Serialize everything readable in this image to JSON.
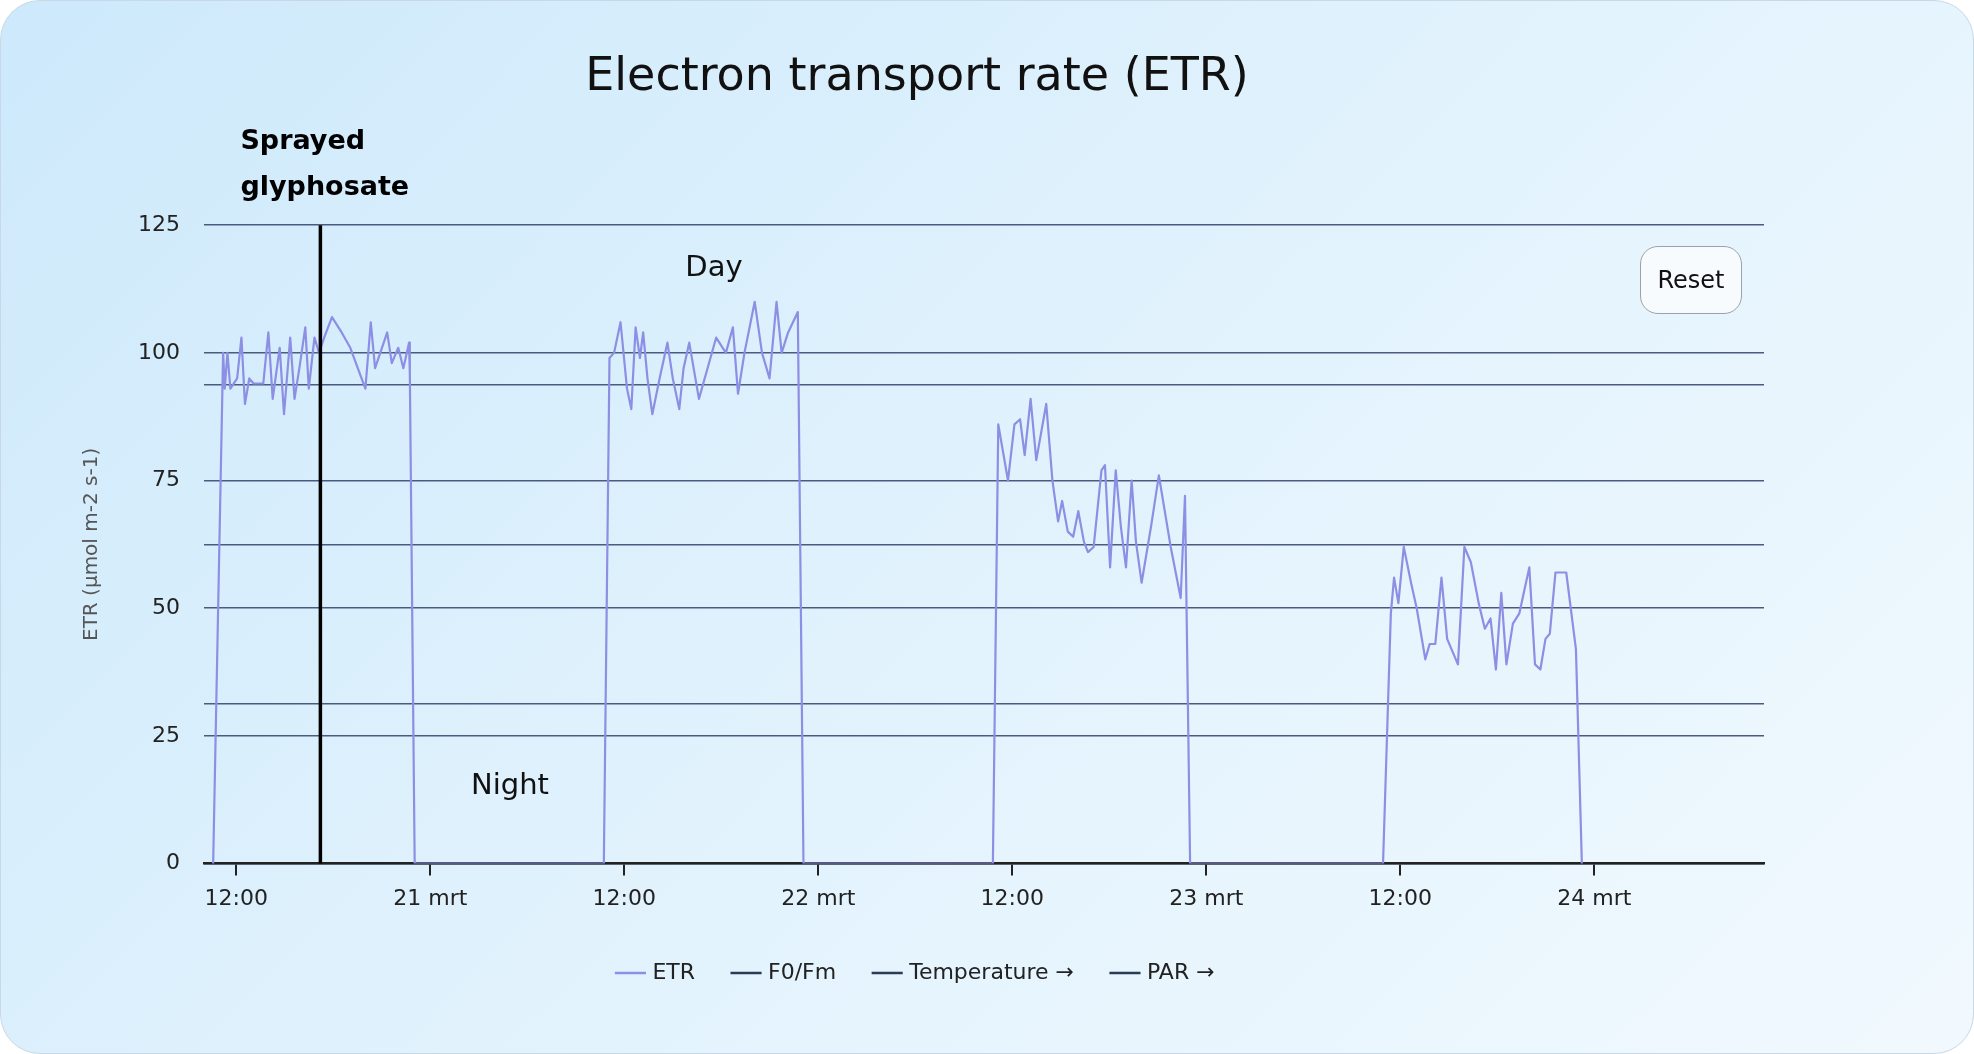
{
  "chart_data": {
    "type": "line",
    "title": "Electron transport rate (ETR)",
    "ylabel": "ETR (µmol m-2 s-1)",
    "xlim": [
      "--03-20T10:00",
      "--03-24T10:30"
    ],
    "xticks": [
      {
        "value": "--03-20T12:00",
        "label": "12:00"
      },
      {
        "value": "--03-21",
        "label": "21 mrt"
      },
      {
        "value": "--03-21T12:00",
        "label": "12:00"
      },
      {
        "value": "--03-22",
        "label": "22 mrt"
      },
      {
        "value": "--03-22T12:00",
        "label": "12:00"
      },
      {
        "value": "--03-23",
        "label": "23 mrt"
      },
      {
        "value": "--03-23T12:00",
        "label": "12:00"
      },
      {
        "value": "--03-24",
        "label": "24 mrt"
      }
    ],
    "ylim": [
      0,
      125
    ],
    "yticks": [
      0,
      25,
      {
        "value": 31.25,
        "label": null
      },
      50,
      {
        "value": 62.5,
        "label": null
      },
      75,
      {
        "value": 93.75,
        "label": null
      },
      100,
      125
    ],
    "grid": "y",
    "legend": "bottom",
    "marker": "none",
    "line_style": "solid",
    "series": [
      {
        "name": "ETR",
        "color": "#8c8fe3",
        "x": [
          "--03-20T10:34",
          "--03-20T11:11",
          "--03-20T11:17",
          "--03-20T11:27",
          "--03-20T11:38",
          "--03-20T12:03",
          "--03-20T12:19",
          "--03-20T12:32",
          "--03-20T12:48",
          "--03-20T13:04",
          "--03-20T13:23",
          "--03-20T13:40",
          "--03-20T13:59",
          "--03-20T14:15",
          "--03-20T14:41",
          "--03-20T14:57",
          "--03-20T15:20",
          "--03-20T15:36",
          "--03-20T15:54",
          "--03-20T16:16",
          "--03-20T16:29",
          "--03-20T16:50",
          "--03-20T17:07",
          "--03-20T17:26",
          "--03-20T17:55",
          "--03-20T18:31",
          "--03-20T19:03",
          "--03-20T19:59",
          "--03-20T20:19",
          "--03-20T20:35",
          "--03-20T21:20",
          "--03-20T21:37",
          "--03-20T22:01",
          "--03-20T22:20",
          "--03-20T22:41",
          "--03-20T22:44",
          "--03-20T23:02",
          "--03-21T10:44",
          "--03-21T11:05",
          "--03-21T11:22",
          "--03-21T11:46",
          "--03-21T12:10",
          "--03-21T12:26",
          "--03-21T12:42",
          "--03-21T12:58",
          "--03-21T13:10",
          "--03-21T13:26",
          "--03-21T13:44",
          "--03-21T14:11",
          "--03-21T14:40",
          "--03-21T15:00",
          "--03-21T15:24",
          "--03-21T15:40",
          "--03-21T16:01",
          "--03-21T16:37",
          "--03-21T17:09",
          "--03-21T17:41",
          "--03-21T18:17",
          "--03-21T18:43",
          "--03-21T19:02",
          "--03-21T19:26",
          "--03-21T20:04",
          "--03-21T20:31",
          "--03-21T20:59",
          "--03-21T21:25",
          "--03-21T21:44",
          "--03-21T22:08",
          "--03-21T22:44",
          "--03-21T23:05",
          "--03-22T10:48",
          "--03-22T11:08",
          "--03-22T11:44",
          "--03-22T12:08",
          "--03-22T12:29",
          "--03-22T12:46",
          "--03-22T13:08",
          "--03-22T13:29",
          "--03-22T14:06",
          "--03-22T14:29",
          "--03-22T14:50",
          "--03-22T15:05",
          "--03-22T15:26",
          "--03-22T15:46",
          "--03-22T16:05",
          "--03-22T16:26",
          "--03-22T16:41",
          "--03-22T17:02",
          "--03-22T17:31",
          "--03-22T17:44",
          "--03-22T18:03",
          "--03-22T18:24",
          "--03-22T18:43",
          "--03-22T19:02",
          "--03-22T19:23",
          "--03-22T19:39",
          "--03-22T20:00",
          "--03-22T20:35",
          "--03-22T21:04",
          "--03-22T21:48",
          "--03-22T22:25",
          "--03-22T22:41",
          "--03-22T23:00",
          "--03-23T10:56",
          "--03-23T11:25",
          "--03-23T11:37",
          "--03-23T11:53",
          "--03-23T12:13",
          "--03-23T12:40",
          "--03-23T13:01",
          "--03-23T13:33",
          "--03-23T13:49",
          "--03-23T14:10",
          "--03-23T14:33",
          "--03-23T14:54",
          "--03-23T15:34",
          "--03-23T15:58",
          "--03-23T16:22",
          "--03-23T16:51",
          "--03-23T17:14",
          "--03-23T17:35",
          "--03-23T17:55",
          "--03-23T18:15",
          "--03-23T18:34",
          "--03-23T18:58",
          "--03-23T19:22",
          "--03-23T19:59",
          "--03-23T20:20",
          "--03-23T20:40",
          "--03-23T20:59",
          "--03-23T21:15",
          "--03-23T21:36",
          "--03-23T22:16",
          "--03-23T22:52",
          "--03-23T23:14"
        ],
        "values": [
          0,
          100,
          93,
          100,
          93,
          95,
          103,
          90,
          95,
          94,
          94,
          94,
          104,
          91,
          101,
          88,
          103,
          91,
          97,
          105,
          93,
          103,
          100,
          103,
          107,
          104,
          101,
          93,
          106,
          97,
          104,
          98,
          101,
          97,
          102,
          96,
          0,
          0,
          99,
          100,
          106,
          93,
          89,
          105,
          99,
          104,
          95,
          88,
          95,
          102,
          95,
          89,
          97,
          102,
          91,
          97,
          103,
          100,
          105,
          92,
          100,
          110,
          100,
          95,
          110,
          100,
          104,
          108,
          0,
          0,
          86,
          75,
          86,
          87,
          80,
          91,
          79,
          90,
          75,
          67,
          71,
          65,
          64,
          69,
          63,
          61,
          62,
          77,
          78,
          58,
          77,
          66,
          58,
          75,
          63,
          55,
          66,
          76,
          62,
          52,
          72,
          0,
          0,
          49,
          56,
          51,
          62,
          55,
          50,
          40,
          43,
          43,
          56,
          44,
          39,
          62,
          59,
          51,
          46,
          48,
          38,
          53,
          39,
          47,
          49,
          58,
          39,
          38,
          44,
          45,
          57,
          57,
          42,
          0
        ]
      },
      {
        "name": "F0/Fm",
        "color": "#2b3a55"
      },
      {
        "name": "Temperature →",
        "color": "#2b3a55"
      },
      {
        "name": "PAR →",
        "color": "#2b3a55"
      }
    ],
    "ref_lines": [
      {
        "axis": "x",
        "value": "--03-20T17:12",
        "label": "Sprayed glyphosate",
        "color": "#000000"
      }
    ],
    "annotations": [
      "Day",
      "Night",
      "Reset"
    ]
  }
}
